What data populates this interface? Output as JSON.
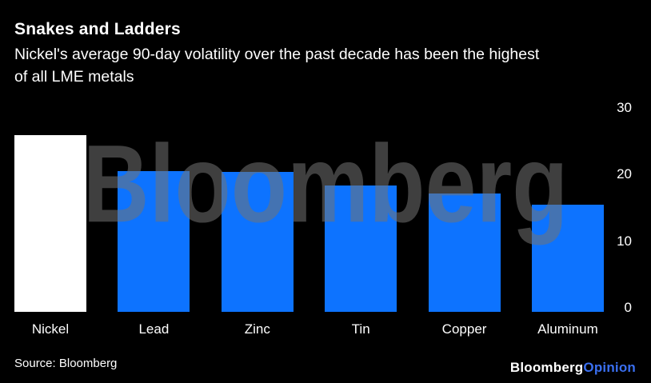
{
  "header": {
    "title": "Snakes and Ladders",
    "subtitle": "Nickel's average 90-day volatility over the past decade has been the highest of all LME metals",
    "subtitle_lines": [
      "Nickel's average 90-day volatility over the past decade has been the highest",
      "of all LME metals"
    ]
  },
  "chart_data": {
    "type": "bar",
    "title": "Snakes and Ladders",
    "subtitle": "Nickel's average 90-day volatility over the past decade has been the highest of all LME metals",
    "categories": [
      "Nickel",
      "Lead",
      "Zinc",
      "Tin",
      "Copper",
      "Aluminum"
    ],
    "values": [
      25.8,
      20.6,
      20.4,
      18.4,
      17.3,
      15.7
    ],
    "bar_colors": [
      "#ffffff",
      "#0d73ff",
      "#0d73ff",
      "#0d73ff",
      "#0d73ff",
      "#0d73ff"
    ],
    "xlabel": "",
    "ylabel": "",
    "ylim": [
      0,
      30
    ],
    "yticks": [
      0,
      10,
      20,
      30
    ],
    "y_axis_side": "right",
    "grid": false,
    "legend": "none"
  },
  "watermark": "Bloomberg",
  "footer": {
    "source": "Source: Bloomberg",
    "brand_bloomberg": "Bloomberg",
    "brand_opinion": "Opinion"
  },
  "colors": {
    "background": "#000000",
    "text": "#ffffff",
    "bar_blue": "#0d73ff",
    "bar_white": "#ffffff",
    "watermark": "rgba(115,115,115,0.55)",
    "brand_opinion_blue": "#3a6ff0"
  }
}
